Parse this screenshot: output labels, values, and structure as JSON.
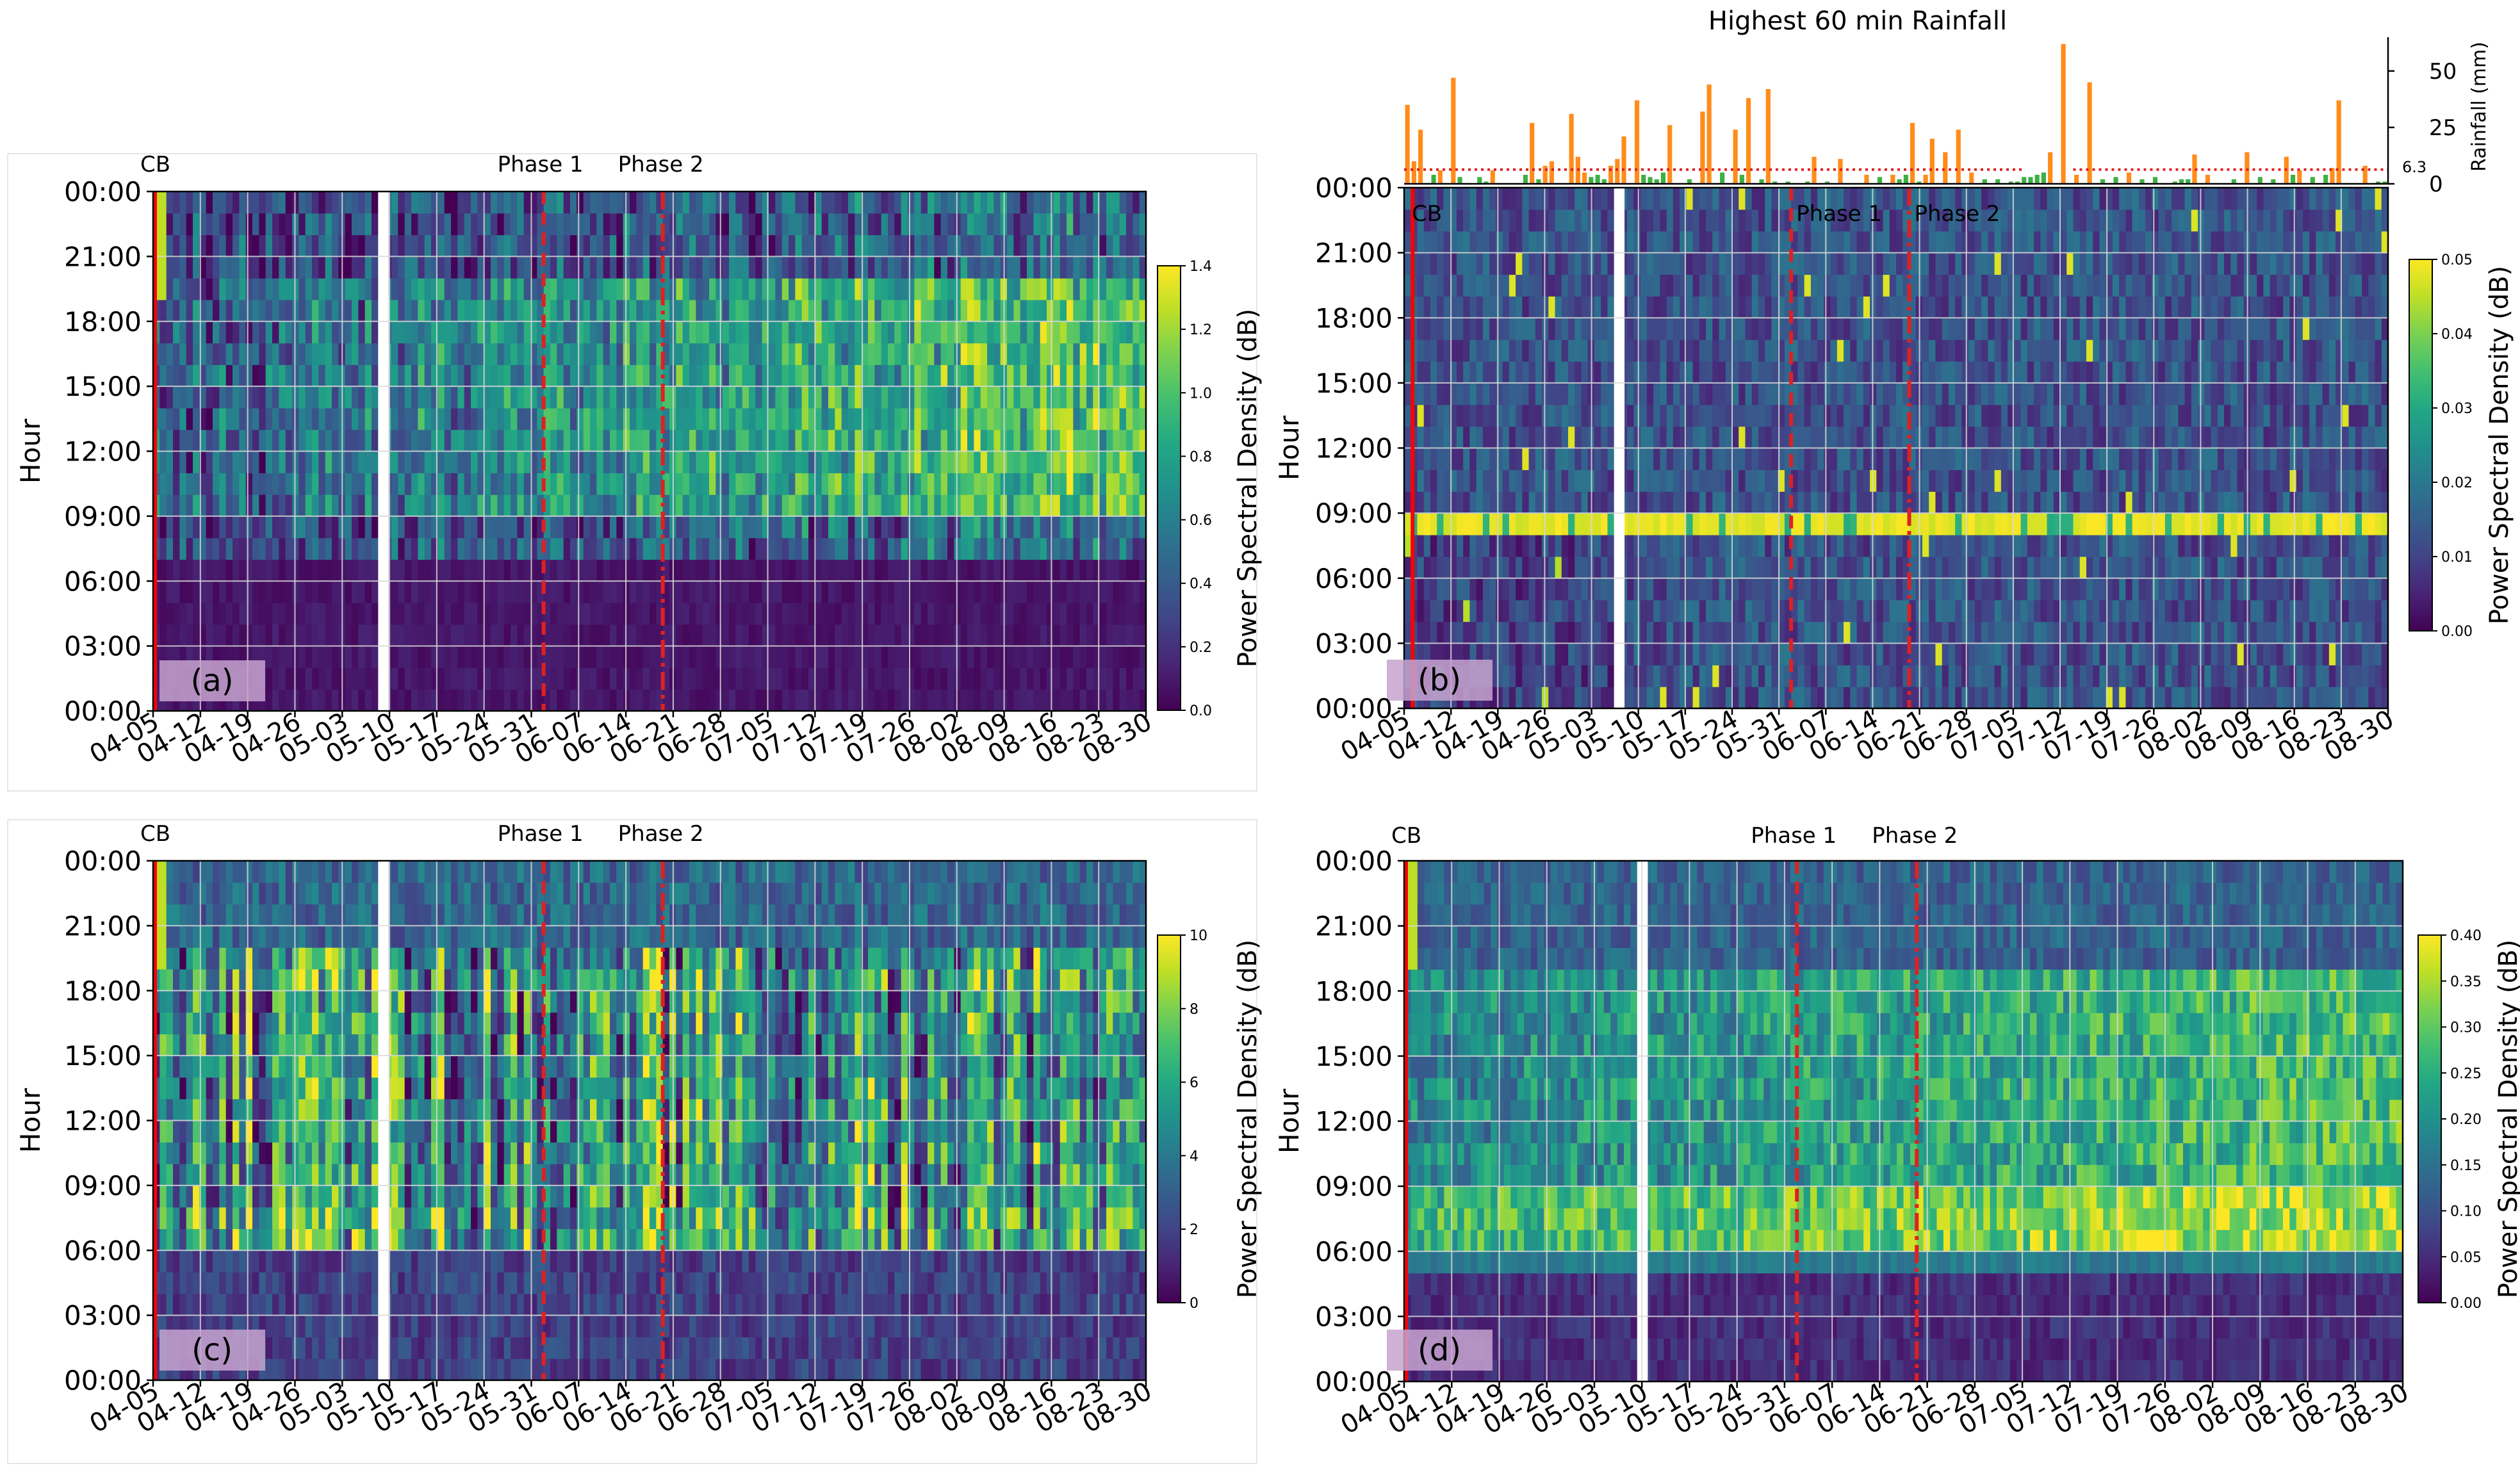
{
  "figure": {
    "rainfall_title": "Highest 60 min Rainfall",
    "rainfall_ylabel": "Rainfall (mm)",
    "rainfall_threshold_label": "6.3",
    "hour_axis_label": "Hour",
    "colorbar_label": "Power Spectral Density (dB)",
    "event_labels": [
      "CB",
      "Phase 1",
      "Phase 2"
    ],
    "colors": {
      "bar_orange": "#ff8c1a",
      "bar_green": "#3cb043",
      "threshold_red": "#e02020",
      "phase_red": "#e02020",
      "cb_red": "#ff0000",
      "label_box": "#c7a3cf",
      "grid": "#d9d9d9"
    },
    "colormap": "viridis"
  },
  "chart_data": [
    {
      "id": "a",
      "type": "heatmap",
      "panel_label": "(a)",
      "xlabel": "",
      "ylabel": "Hour",
      "x_ticks": [
        "04-05",
        "04-12",
        "04-19",
        "04-26",
        "05-03",
        "05-10",
        "05-17",
        "05-24",
        "05-31",
        "06-07",
        "06-14",
        "06-21",
        "06-28",
        "07-05",
        "07-12",
        "07-19",
        "07-26",
        "08-02",
        "08-09",
        "08-16",
        "08-23",
        "08-30"
      ],
      "y_ticks": [
        "00:00",
        "03:00",
        "06:00",
        "09:00",
        "12:00",
        "15:00",
        "18:00",
        "21:00",
        "00:00"
      ],
      "n_days": 150,
      "n_hours": 24,
      "colorbar": {
        "label": "Power Spectral Density (dB)",
        "range": [
          0,
          1.4
        ],
        "ticks": [
          "0.0",
          "0.2",
          "0.4",
          "0.6",
          "0.8",
          "1.0",
          "1.2",
          "1.4"
        ]
      },
      "gap_day": 34,
      "phase1_day": 59,
      "phase2_day": 77,
      "cb_day": 0,
      "profile": "a"
    },
    {
      "id": "b",
      "type": "heatmap",
      "panel_label": "(b)",
      "xlabel": "",
      "ylabel": "Hour",
      "x_ticks": [
        "04-05",
        "04-12",
        "04-19",
        "04-26",
        "05-03",
        "05-10",
        "05-17",
        "05-24",
        "05-31",
        "06-07",
        "06-14",
        "06-21",
        "06-28",
        "07-05",
        "07-12",
        "07-19",
        "07-26",
        "08-02",
        "08-09",
        "08-16",
        "08-23",
        "08-30"
      ],
      "y_ticks": [
        "00:00",
        "03:00",
        "06:00",
        "09:00",
        "12:00",
        "15:00",
        "18:00",
        "21:00",
        "00:00"
      ],
      "n_days": 150,
      "n_hours": 24,
      "colorbar": {
        "label": "Power Spectral Density (dB)",
        "range": [
          0,
          0.05
        ],
        "ticks": [
          "0.00",
          "0.01",
          "0.02",
          "0.03",
          "0.04",
          "0.05"
        ]
      },
      "gap_day": 32,
      "phase1_day": 59,
      "phase2_day": 77,
      "cb_day": 1,
      "profile": "b"
    },
    {
      "id": "c",
      "type": "heatmap",
      "panel_label": "(c)",
      "xlabel": "",
      "ylabel": "Hour",
      "x_ticks": [
        "04-05",
        "04-12",
        "04-19",
        "04-26",
        "05-03",
        "05-10",
        "05-17",
        "05-24",
        "05-31",
        "06-07",
        "06-14",
        "06-21",
        "06-28",
        "07-05",
        "07-12",
        "07-19",
        "07-26",
        "08-02",
        "08-09",
        "08-16",
        "08-23",
        "08-30"
      ],
      "y_ticks": [
        "00:00",
        "03:00",
        "06:00",
        "09:00",
        "12:00",
        "15:00",
        "18:00",
        "21:00",
        "00:00"
      ],
      "n_days": 150,
      "n_hours": 24,
      "colorbar": {
        "label": "Power Spectral Density (dB)",
        "range": [
          0,
          10
        ],
        "ticks": [
          "0",
          "2",
          "4",
          "6",
          "8",
          "10"
        ]
      },
      "gap_day": 34,
      "phase1_day": 59,
      "phase2_day": 77,
      "cb_day": 0,
      "profile": "c"
    },
    {
      "id": "d",
      "type": "heatmap",
      "panel_label": "(d)",
      "xlabel": "",
      "ylabel": "Hour",
      "x_ticks": [
        "04-05",
        "04-12",
        "04-19",
        "04-26",
        "05-03",
        "05-10",
        "05-17",
        "05-24",
        "05-31",
        "06-07",
        "06-14",
        "06-21",
        "06-28",
        "07-05",
        "07-12",
        "07-19",
        "07-26",
        "08-02",
        "08-09",
        "08-16",
        "08-23",
        "08-30"
      ],
      "y_ticks": [
        "00:00",
        "03:00",
        "06:00",
        "09:00",
        "12:00",
        "15:00",
        "18:00",
        "21:00",
        "00:00"
      ],
      "n_days": 150,
      "n_hours": 24,
      "colorbar": {
        "label": "Power Spectral Density (dB)",
        "range": [
          0,
          0.4
        ],
        "ticks": [
          "0.00",
          "0.05",
          "0.10",
          "0.15",
          "0.20",
          "0.25",
          "0.30",
          "0.35",
          "0.40"
        ]
      },
      "gap_day": 35,
      "phase1_day": 59,
      "phase2_day": 77,
      "cb_day": 0,
      "profile": "d"
    },
    {
      "id": "rain",
      "type": "bar",
      "title": "Highest 60 min Rainfall",
      "ylabel": "Rainfall (mm)",
      "ylim": [
        0,
        65
      ],
      "y_ticks": [
        0,
        25,
        50
      ],
      "threshold": 6.3,
      "threshold_label": "6.3",
      "n_days": 150,
      "days": [
        0,
        1,
        2,
        4,
        5,
        7,
        8,
        11,
        12,
        13,
        18,
        19,
        20,
        21,
        22,
        25,
        26,
        27,
        28,
        29,
        30,
        31,
        32,
        33,
        35,
        36,
        37,
        38,
        39,
        40,
        43,
        45,
        46,
        48,
        50,
        51,
        52,
        54,
        55,
        56,
        58,
        61,
        62,
        64,
        66,
        70,
        72,
        74,
        75,
        76,
        77,
        78,
        79,
        80,
        82,
        84,
        86,
        88,
        90,
        92,
        93,
        94,
        95,
        96,
        97,
        98,
        100,
        102,
        104,
        106,
        108,
        110,
        112,
        114,
        117,
        118,
        119,
        120,
        122,
        126,
        128,
        130,
        132,
        134,
        135,
        136,
        138,
        140,
        141,
        142,
        146,
        148,
        149
      ],
      "values": [
        35,
        10,
        24,
        4,
        6,
        47,
        3,
        3,
        1,
        6,
        4,
        27,
        2,
        8,
        10,
        31,
        12,
        5,
        3,
        4,
        2,
        8,
        11,
        21,
        37,
        4,
        3,
        2,
        5,
        26,
        2,
        32,
        44,
        5,
        24,
        4,
        38,
        2,
        42,
        1,
        1,
        1,
        12,
        1,
        11,
        4,
        3,
        4,
        2,
        4,
        27,
        1,
        4,
        20,
        14,
        24,
        5,
        2,
        2,
        1,
        1,
        3,
        3,
        4,
        5,
        14,
        62,
        4,
        45,
        2,
        3,
        5,
        2,
        3,
        1,
        2,
        2,
        13,
        4,
        2,
        14,
        3,
        2,
        12,
        4,
        6,
        3,
        4,
        7,
        37,
        8,
        1,
        1
      ],
      "colors": [
        "o",
        "o",
        "o",
        "g",
        "o",
        "o",
        "g",
        "g",
        "g",
        "o",
        "g",
        "o",
        "g",
        "o",
        "o",
        "o",
        "o",
        "o",
        "g",
        "g",
        "g",
        "o",
        "o",
        "o",
        "o",
        "g",
        "g",
        "g",
        "g",
        "o",
        "g",
        "o",
        "o",
        "g",
        "o",
        "g",
        "o",
        "g",
        "o",
        "g",
        "g",
        "g",
        "o",
        "g",
        "o",
        "o",
        "g",
        "o",
        "g",
        "g",
        "o",
        "g",
        "o",
        "o",
        "o",
        "o",
        "o",
        "g",
        "g",
        "g",
        "g",
        "g",
        "g",
        "g",
        "g",
        "o",
        "o",
        "o",
        "o",
        "g",
        "g",
        "o",
        "g",
        "g",
        "g",
        "g",
        "g",
        "o",
        "o",
        "g",
        "o",
        "g",
        "g",
        "o",
        "g",
        "o",
        "g",
        "g",
        "o",
        "o",
        "o",
        "g",
        "g"
      ]
    }
  ]
}
